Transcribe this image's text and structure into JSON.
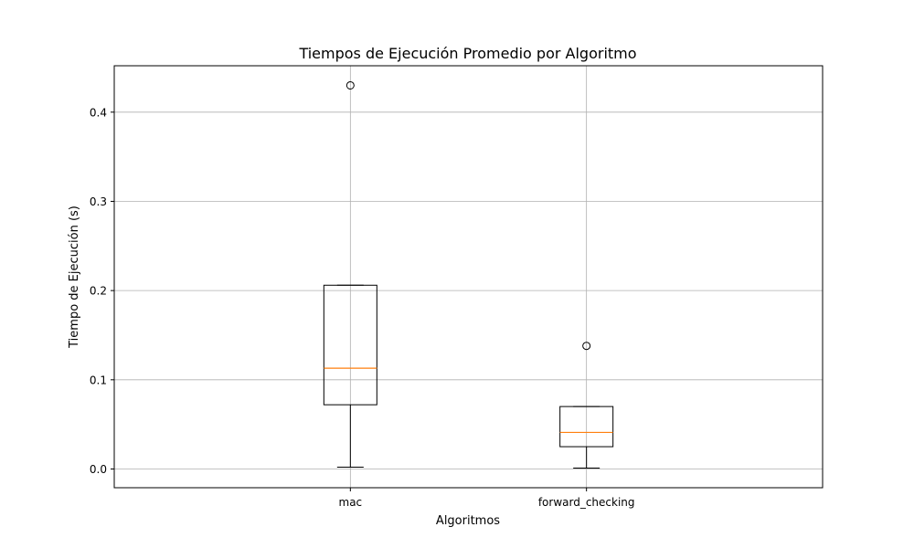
{
  "chart_data": {
    "type": "box",
    "title": "Tiempos de Ejecución Promedio por Algoritmo",
    "xlabel": "Algoritmos",
    "ylabel": "Tiempo de Ejecución (s)",
    "ylim": [
      -0.021,
      0.452
    ],
    "yticks": [
      "0.0",
      "0.1",
      "0.2",
      "0.3",
      "0.4"
    ],
    "grid": true,
    "categories": [
      "mac",
      "forward_checking"
    ],
    "boxes": [
      {
        "category": "mac",
        "whisker_low": 0.002,
        "q1": 0.072,
        "median": 0.113,
        "q3": 0.206,
        "whisker_high": 0.206,
        "outliers": [
          0.43
        ]
      },
      {
        "category": "forward_checking",
        "whisker_low": 0.001,
        "q1": 0.025,
        "median": 0.041,
        "q3": 0.07,
        "whisker_high": 0.07,
        "outliers": [
          0.138
        ]
      }
    ],
    "colors": {
      "box": "#000000",
      "median": "#ff7f0e",
      "grid": "#b0b0b0"
    }
  }
}
